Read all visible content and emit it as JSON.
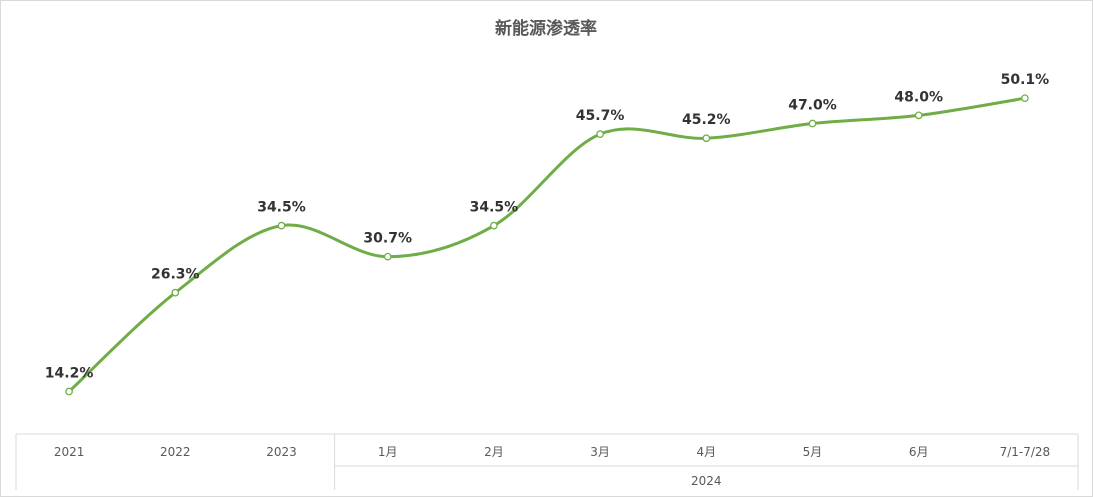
{
  "chart_data": {
    "type": "line",
    "title": "新能源渗透率",
    "categories": [
      "2021",
      "2022",
      "2023",
      "1月",
      "2月",
      "3月",
      "4月",
      "5月",
      "6月",
      "7/1-7/28"
    ],
    "group_labels": [
      {
        "label": "2024",
        "from": 3,
        "to": 9
      }
    ],
    "series": [
      {
        "values": [
          14.2,
          26.3,
          34.5,
          30.7,
          34.5,
          45.7,
          45.2,
          47.0,
          48.0,
          50.1
        ],
        "data_labels": [
          "14.2%",
          "26.3%",
          "34.5%",
          "30.7%",
          "34.5%",
          "45.7%",
          "45.2%",
          "47.0%",
          "48.0%",
          "50.1%"
        ],
        "color": "#70ad47"
      }
    ],
    "ylim": [
      9,
      56
    ],
    "grid": false,
    "legend": "none",
    "line_style": "smooth",
    "marker": "hollow-circle"
  }
}
